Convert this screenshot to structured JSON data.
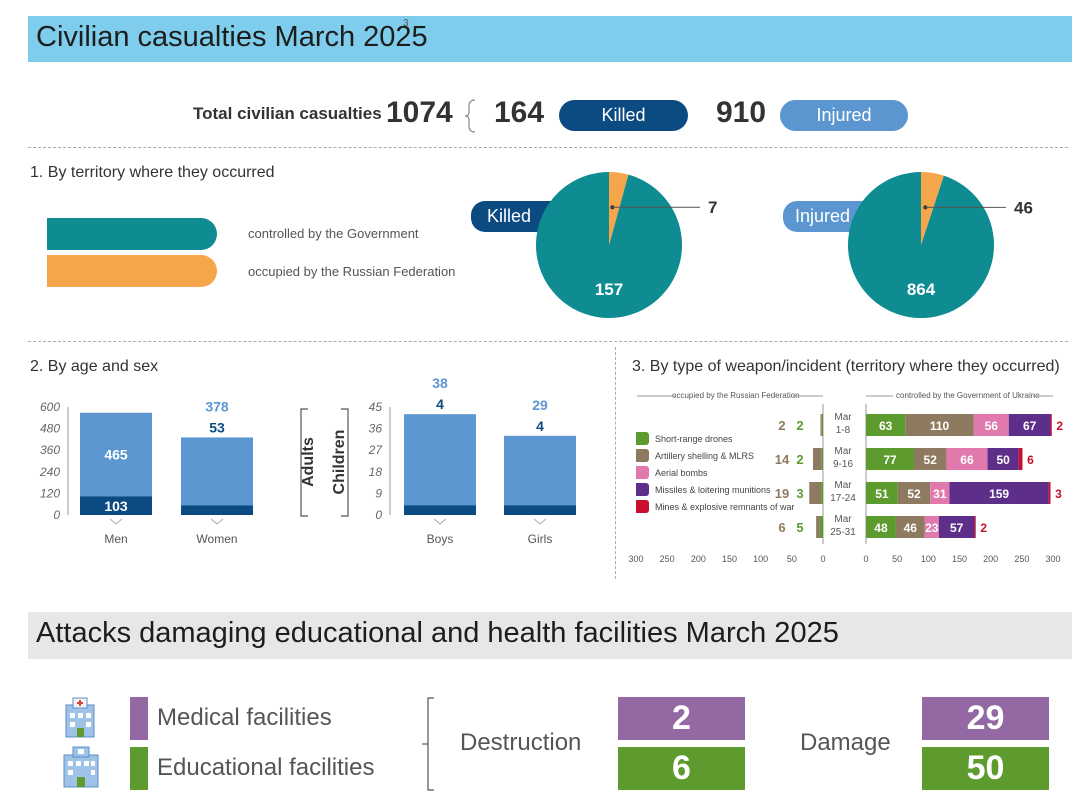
{
  "banner1": {
    "title": "Civilian casualties March 2025",
    "footnote": "3"
  },
  "summary": {
    "total_label": "Total civilian casualties",
    "total": "1074",
    "killed_count": "164",
    "killed_label": "Killed",
    "injured_count": "910",
    "injured_label": "Injured"
  },
  "colors": {
    "government": "#0e8c92",
    "occupied": "#f5a54a",
    "killed": "#0c4a82",
    "injured": "#5b96d0",
    "drones": "#5d9b2f",
    "artillery": "#8e7a60",
    "aerial": "#e07aac",
    "missiles": "#5d2e8a",
    "mines": "#c8102e",
    "medical": "#9468a3",
    "educational": "#5d9b2f"
  },
  "section1": {
    "title": "1. By territory where they occurred",
    "legend": [
      "controlled by the Government",
      "occupied by the Russian Federation"
    ],
    "killed_label": "Killed",
    "injured_label": "Injured"
  },
  "section2": {
    "title": "2. By age and sex",
    "adults_label": "Adults",
    "children_label": "Children"
  },
  "section3": {
    "title": "3. By type of weapon/incident (territory where they occurred)",
    "left_header": "occupied by the Russian Federation",
    "right_header": "controlled by the Government of Ukraine",
    "legend": [
      "Short-range drones",
      "Artillery shelling & MLRS",
      "Aerial bombs",
      "Missiles & loitering munitions",
      "Mines & explosive remnants of war"
    ]
  },
  "banner2": {
    "title": "Attacks damaging educational and health facilities March 2025"
  },
  "facilities": {
    "medical_label": "Medical facilities",
    "educational_label": "Educational facilities",
    "destruction_label": "Destruction",
    "damage_label": "Damage",
    "medical_destruction": "2",
    "educational_destruction": "6",
    "medical_damage": "29",
    "educational_damage": "50"
  },
  "chart_data": [
    {
      "type": "pie",
      "title": "Killed",
      "categories": [
        "controlled by the Government",
        "occupied by the Russian Federation"
      ],
      "values": [
        157,
        7
      ]
    },
    {
      "type": "pie",
      "title": "Injured",
      "categories": [
        "controlled by the Government",
        "occupied by the Russian Federation"
      ],
      "values": [
        864,
        46
      ]
    },
    {
      "type": "bar",
      "title": "Adults",
      "stacked": true,
      "categories": [
        "Men",
        "Women"
      ],
      "series": [
        {
          "name": "Killed",
          "values": [
            103,
            53
          ]
        },
        {
          "name": "Injured",
          "values": [
            465,
            378
          ]
        }
      ],
      "yticks": [
        0,
        120,
        240,
        360,
        480,
        600
      ],
      "ylim": [
        0,
        600
      ]
    },
    {
      "type": "bar",
      "title": "Children",
      "stacked": true,
      "categories": [
        "Boys",
        "Girls"
      ],
      "series": [
        {
          "name": "Killed",
          "values": [
            4,
            4
          ]
        },
        {
          "name": "Injured",
          "values": [
            38,
            29
          ]
        }
      ],
      "yticks": [
        0,
        9,
        18,
        27,
        36,
        45
      ],
      "ylim": [
        0,
        45
      ]
    },
    {
      "type": "bar",
      "title": "occupied by the Russian Federation",
      "stacked": true,
      "orientation": "horizontal",
      "direction": "reversed",
      "categories": [
        "Mar\n1-8",
        "Mar\n9-16",
        "Mar\n17-24",
        "Mar\n25-31"
      ],
      "series": [
        {
          "name": "Short-range drones",
          "values": [
            2,
            2,
            3,
            5
          ]
        },
        {
          "name": "Artillery shelling & MLRS",
          "values": [
            2,
            14,
            19,
            6
          ]
        }
      ],
      "xticks": [
        300,
        250,
        200,
        150,
        100,
        50,
        0
      ],
      "xlim": [
        0,
        300
      ]
    },
    {
      "type": "bar",
      "title": "controlled by the Government of Ukraine",
      "stacked": true,
      "orientation": "horizontal",
      "categories": [
        "Mar\n1-8",
        "Mar\n9-16",
        "Mar\n17-24",
        "Mar\n25-31"
      ],
      "series": [
        {
          "name": "Short-range drones",
          "values": [
            63,
            77,
            51,
            48
          ]
        },
        {
          "name": "Artillery shelling & MLRS",
          "values": [
            110,
            52,
            52,
            46
          ]
        },
        {
          "name": "Aerial bombs",
          "values": [
            56,
            66,
            31,
            23
          ]
        },
        {
          "name": "Missiles & loitering munitions",
          "values": [
            67,
            50,
            159,
            57
          ]
        },
        {
          "name": "Mines & explosive remnants of war",
          "values": [
            2,
            6,
            3,
            2
          ]
        }
      ],
      "xticks": [
        0,
        50,
        100,
        150,
        200,
        250,
        300
      ],
      "xlim": [
        0,
        300
      ]
    }
  ]
}
